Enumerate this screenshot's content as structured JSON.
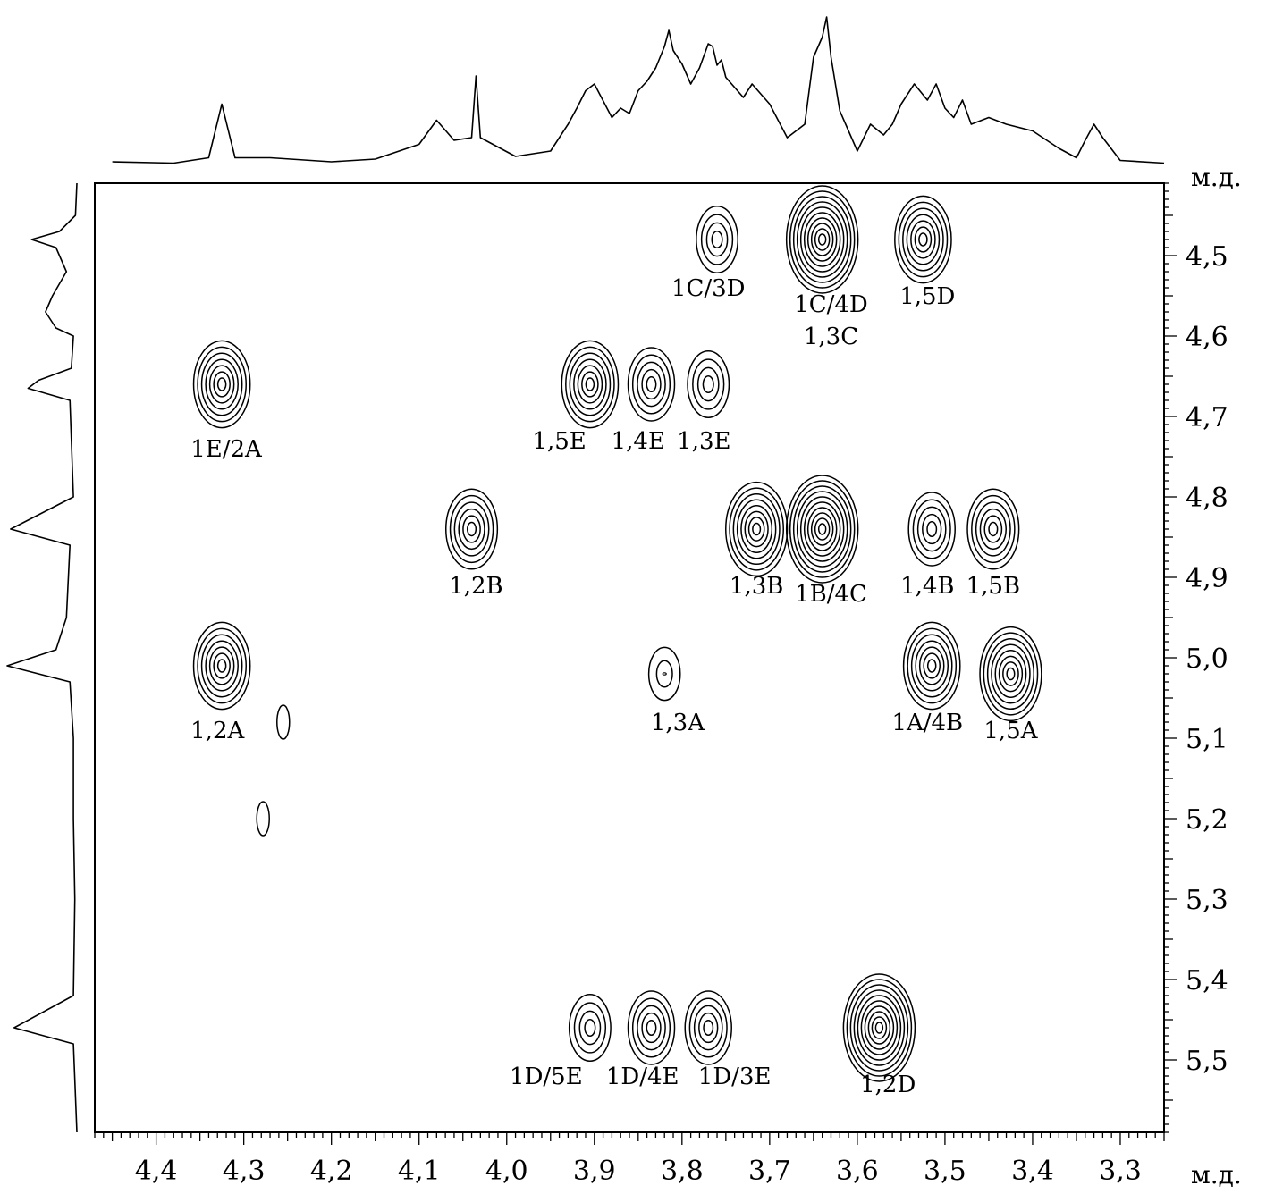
{
  "chart_data": {
    "type": "contour",
    "title": "",
    "xlabel": "м.д.",
    "ylabel": "м.д.",
    "xlim": [
      4.47,
      3.25
    ],
    "ylim": [
      4.41,
      5.59
    ],
    "x_tick_labels": [
      "4,4",
      "4,3",
      "4,2",
      "4,1",
      "4,0",
      "3,9",
      "3,8",
      "3,7",
      "3,6",
      "3,5",
      "3,4",
      "3,3"
    ],
    "x_tick_values": [
      4.4,
      4.3,
      4.2,
      4.1,
      4.0,
      3.9,
      3.8,
      3.7,
      3.6,
      3.5,
      3.4,
      3.3
    ],
    "y_tick_labels": [
      "4,5",
      "4,6",
      "4,7",
      "4,8",
      "4,9",
      "5,0",
      "5,1",
      "5,2",
      "5,3",
      "5,4",
      "5,5"
    ],
    "y_tick_values": [
      4.5,
      4.6,
      4.7,
      4.8,
      4.9,
      5.0,
      5.1,
      5.2,
      5.3,
      5.4,
      5.5
    ],
    "peaks": [
      {
        "label": "1C/3D",
        "x": 3.76,
        "y": 4.48,
        "label_x": 3.77,
        "label_y": 4.55,
        "levels": 4
      },
      {
        "label": "1C/4D",
        "x": 3.64,
        "y": 4.48,
        "label_x": 3.63,
        "label_y": 4.57,
        "levels": 10
      },
      {
        "label": "1,3C",
        "x": null,
        "y": null,
        "label_x": 3.63,
        "label_y": 4.61,
        "levels": 0
      },
      {
        "label": "1,5D",
        "x": 3.525,
        "y": 4.48,
        "label_x": 3.52,
        "label_y": 4.56,
        "levels": 7
      },
      {
        "label": "1E/2A",
        "x": 4.325,
        "y": 4.66,
        "label_x": 4.32,
        "label_y": 4.75,
        "levels": 7
      },
      {
        "label": "1,5E",
        "x": 3.905,
        "y": 4.66,
        "label_x": 3.94,
        "label_y": 4.74,
        "levels": 7
      },
      {
        "label": "1,4E",
        "x": 3.835,
        "y": 4.66,
        "label_x": 3.85,
        "label_y": 4.74,
        "levels": 5
      },
      {
        "label": "1,3E",
        "x": 3.77,
        "y": 4.66,
        "label_x": 3.775,
        "label_y": 4.74,
        "levels": 4
      },
      {
        "label": "1,2B",
        "x": 4.04,
        "y": 4.84,
        "label_x": 4.035,
        "label_y": 4.92,
        "levels": 6
      },
      {
        "label": "1,3B",
        "x": 3.715,
        "y": 4.84,
        "label_x": 3.715,
        "label_y": 4.92,
        "levels": 8
      },
      {
        "label": "1B/4C",
        "x": 3.64,
        "y": 4.84,
        "label_x": 3.63,
        "label_y": 4.93,
        "levels": 10
      },
      {
        "label": "1,4B",
        "x": 3.515,
        "y": 4.84,
        "label_x": 3.52,
        "label_y": 4.92,
        "levels": 5
      },
      {
        "label": "1,5B",
        "x": 3.445,
        "y": 4.84,
        "label_x": 3.445,
        "label_y": 4.92,
        "levels": 6
      },
      {
        "label": "1,2A",
        "x": 4.325,
        "y": 5.01,
        "label_x": 4.33,
        "label_y": 5.1,
        "levels": 7
      },
      {
        "label": "1,3A",
        "x": 3.82,
        "y": 5.02,
        "label_x": 3.805,
        "label_y": 5.09,
        "levels": 2
      },
      {
        "label": "1A/4B",
        "x": 3.515,
        "y": 5.01,
        "label_x": 3.52,
        "label_y": 5.09,
        "levels": 7
      },
      {
        "label": "1,5A",
        "x": 3.425,
        "y": 5.02,
        "label_x": 3.425,
        "label_y": 5.1,
        "levels": 8
      },
      {
        "label": "1D/5E",
        "x": 3.905,
        "y": 5.46,
        "label_x": 3.955,
        "label_y": 5.53,
        "levels": 4
      },
      {
        "label": "1D/4E",
        "x": 3.835,
        "y": 5.46,
        "label_x": 3.845,
        "label_y": 5.53,
        "levels": 5
      },
      {
        "label": "1D/3E",
        "x": 3.77,
        "y": 5.46,
        "label_x": 3.74,
        "label_y": 5.53,
        "levels": 5
      },
      {
        "label": "1,2D",
        "x": 3.575,
        "y": 5.46,
        "label_x": 3.565,
        "label_y": 5.54,
        "levels": 10
      }
    ],
    "minor_peaks": [
      {
        "x": 4.278,
        "y": 5.2
      },
      {
        "x": 4.255,
        "y": 5.08
      }
    ],
    "top_projection": [
      [
        4.45,
        0.02
      ],
      [
        4.38,
        0.01
      ],
      [
        4.34,
        0.05
      ],
      [
        4.325,
        0.45
      ],
      [
        4.31,
        0.05
      ],
      [
        4.27,
        0.05
      ],
      [
        4.2,
        0.02
      ],
      [
        4.15,
        0.04
      ],
      [
        4.1,
        0.15
      ],
      [
        4.08,
        0.33
      ],
      [
        4.06,
        0.18
      ],
      [
        4.04,
        0.2
      ],
      [
        4.035,
        0.66
      ],
      [
        4.03,
        0.2
      ],
      [
        3.99,
        0.06
      ],
      [
        3.95,
        0.1
      ],
      [
        3.93,
        0.3
      ],
      [
        3.92,
        0.42
      ],
      [
        3.91,
        0.55
      ],
      [
        3.9,
        0.6
      ],
      [
        3.88,
        0.35
      ],
      [
        3.87,
        0.42
      ],
      [
        3.86,
        0.38
      ],
      [
        3.85,
        0.55
      ],
      [
        3.84,
        0.62
      ],
      [
        3.83,
        0.72
      ],
      [
        3.82,
        0.88
      ],
      [
        3.815,
        1.0
      ],
      [
        3.81,
        0.85
      ],
      [
        3.8,
        0.75
      ],
      [
        3.79,
        0.6
      ],
      [
        3.78,
        0.72
      ],
      [
        3.77,
        0.9
      ],
      [
        3.765,
        0.88
      ],
      [
        3.76,
        0.74
      ],
      [
        3.755,
        0.78
      ],
      [
        3.75,
        0.65
      ],
      [
        3.73,
        0.5
      ],
      [
        3.72,
        0.6
      ],
      [
        3.7,
        0.45
      ],
      [
        3.68,
        0.2
      ],
      [
        3.66,
        0.3
      ],
      [
        3.65,
        0.8
      ],
      [
        3.64,
        0.95
      ],
      [
        3.635,
        1.1
      ],
      [
        3.63,
        0.8
      ],
      [
        3.62,
        0.4
      ],
      [
        3.6,
        0.1
      ],
      [
        3.585,
        0.3
      ],
      [
        3.57,
        0.22
      ],
      [
        3.56,
        0.3
      ],
      [
        3.55,
        0.45
      ],
      [
        3.535,
        0.6
      ],
      [
        3.52,
        0.48
      ],
      [
        3.51,
        0.6
      ],
      [
        3.5,
        0.42
      ],
      [
        3.49,
        0.35
      ],
      [
        3.48,
        0.48
      ],
      [
        3.47,
        0.3
      ],
      [
        3.45,
        0.35
      ],
      [
        3.43,
        0.3
      ],
      [
        3.4,
        0.25
      ],
      [
        3.37,
        0.12
      ],
      [
        3.35,
        0.05
      ],
      [
        3.34,
        0.18
      ],
      [
        3.33,
        0.3
      ],
      [
        3.32,
        0.2
      ],
      [
        3.3,
        0.03
      ],
      [
        3.25,
        0.01
      ]
    ],
    "left_projection": [
      [
        4.41,
        0.0
      ],
      [
        4.45,
        0.02
      ],
      [
        4.47,
        0.25
      ],
      [
        4.48,
        0.65
      ],
      [
        4.49,
        0.3
      ],
      [
        4.52,
        0.15
      ],
      [
        4.55,
        0.35
      ],
      [
        4.57,
        0.45
      ],
      [
        4.59,
        0.3
      ],
      [
        4.6,
        0.05
      ],
      [
        4.64,
        0.08
      ],
      [
        4.655,
        0.55
      ],
      [
        4.665,
        0.7
      ],
      [
        4.68,
        0.1
      ],
      [
        4.8,
        0.05
      ],
      [
        4.84,
        0.95
      ],
      [
        4.86,
        0.1
      ],
      [
        4.95,
        0.15
      ],
      [
        4.99,
        0.3
      ],
      [
        5.01,
        1.0
      ],
      [
        5.03,
        0.1
      ],
      [
        5.1,
        0.05
      ],
      [
        5.2,
        0.05
      ],
      [
        5.3,
        0.03
      ],
      [
        5.42,
        0.05
      ],
      [
        5.46,
        0.9
      ],
      [
        5.48,
        0.05
      ],
      [
        5.59,
        0.0
      ]
    ]
  }
}
